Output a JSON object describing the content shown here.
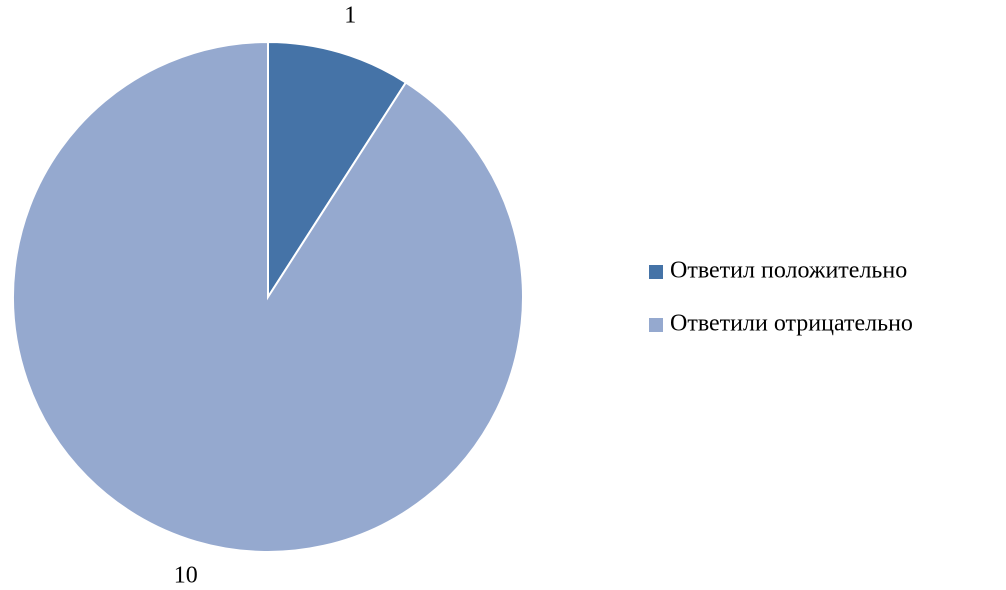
{
  "chart_data": {
    "type": "pie",
    "categories": [
      "Ответил положительно",
      "Ответили отрицательно"
    ],
    "values": [
      1,
      10
    ],
    "colors": [
      "#4573a7",
      "#95a9cf"
    ],
    "legend": "right"
  }
}
